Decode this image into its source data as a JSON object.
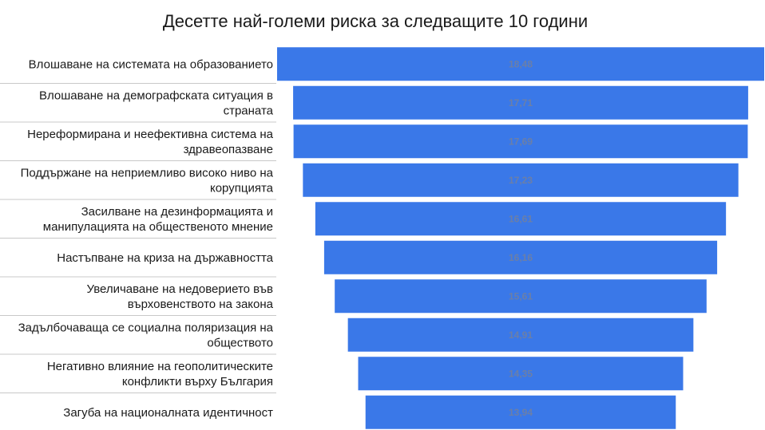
{
  "chart_data": {
    "type": "bar",
    "orientation": "horizontal-funnel",
    "title": "Десетте най-големи риска за следващите 10 години",
    "categories": [
      [
        "Влошаване на системата на образованието"
      ],
      [
        "Влошаване на демографската ситуация в",
        "страната"
      ],
      [
        "Нереформирана и неефективна система на",
        "здравеопазване"
      ],
      [
        "Поддържане на  неприемливо високо ниво на",
        "корупцията"
      ],
      [
        "Засилване на дезинформацията и",
        "манипулацията на общественото мнение"
      ],
      [
        "Настъпване на криза на държавността"
      ],
      [
        "Увеличаване на недоверието във",
        "върховенството на закона"
      ],
      [
        "Задълбочаваща се социална поляризация на",
        "обществото"
      ],
      [
        "Негативно влияние на геополитическите",
        "конфликти върху България"
      ],
      [
        "Загуба на националната идентичност"
      ]
    ],
    "values": [
      18.48,
      17.71,
      17.69,
      17.23,
      16.61,
      16.16,
      15.61,
      14.91,
      14.35,
      13.94
    ],
    "value_labels": [
      "18,48",
      "17,71",
      "17,69",
      "17,23",
      "16,61",
      "16,16",
      "15,61",
      "14,91",
      "14,35",
      "13,94"
    ],
    "bar_color": "#3a78e8",
    "value_label_color": "#6b7fa8",
    "grid": false,
    "legend": "none"
  }
}
